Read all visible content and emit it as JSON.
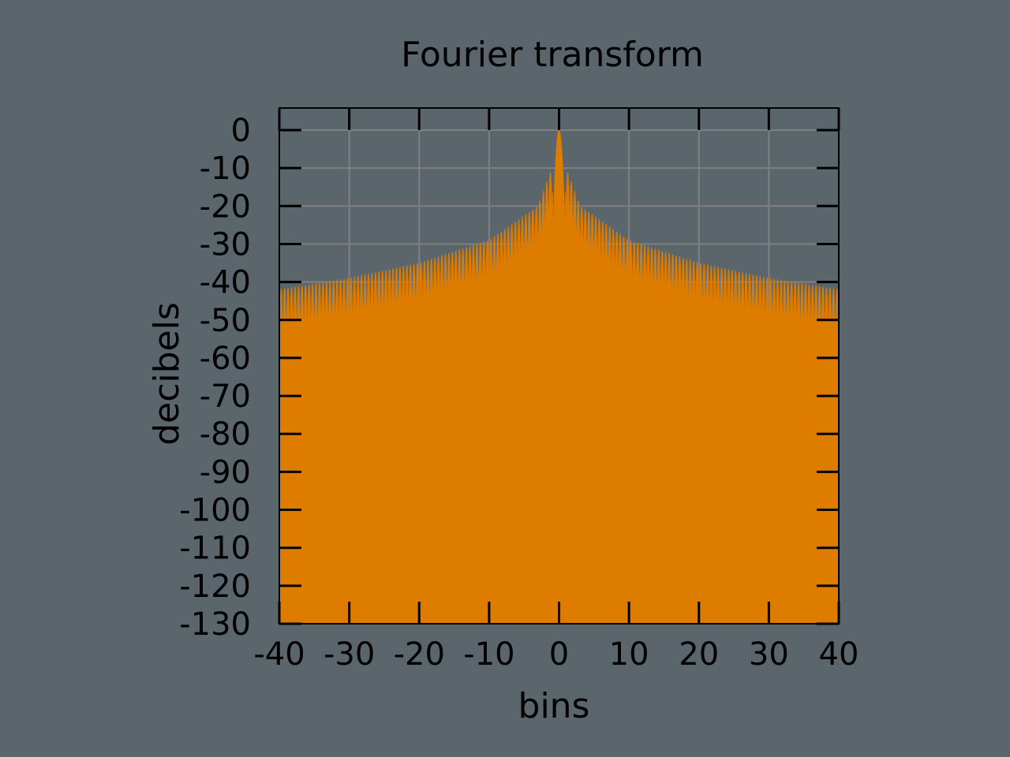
{
  "background_color": "#5a666c",
  "chart_data": {
    "type": "area",
    "title": "Fourier transform",
    "xlabel": "bins",
    "ylabel": "decibels",
    "xlim": [
      -40,
      40
    ],
    "ylim": [
      -130,
      0
    ],
    "x_ticks": [
      -40,
      -30,
      -20,
      -10,
      0,
      10,
      20,
      30,
      40
    ],
    "y_ticks": [
      0,
      -10,
      -20,
      -30,
      -40,
      -50,
      -60,
      -70,
      -80,
      -90,
      -100,
      -110,
      -120,
      -130
    ],
    "grid": true,
    "grid_color": "#808080",
    "fill_color": "#de7c00",
    "series": [
      {
        "description_points": {
          "peak_x": 0,
          "peak_db": 0,
          "sidelobe_upper_envelope": [
            {
              "x": -40,
              "y": -42
            },
            {
              "x": -30,
              "y": -39
            },
            {
              "x": -20,
              "y": -35
            },
            {
              "x": -10,
              "y": -29
            },
            {
              "x": -3,
              "y": -20
            },
            {
              "x": -1,
              "y": -10
            },
            {
              "x": 0,
              "y": 0
            },
            {
              "x": 1,
              "y": -10
            },
            {
              "x": 3,
              "y": -20
            },
            {
              "x": 10,
              "y": -29
            },
            {
              "x": 20,
              "y": -35
            },
            {
              "x": 30,
              "y": -39
            },
            {
              "x": 40,
              "y": -42
            }
          ],
          "sidelobe_spacing": 1,
          "nulls_min_db": -130
        }
      }
    ]
  }
}
